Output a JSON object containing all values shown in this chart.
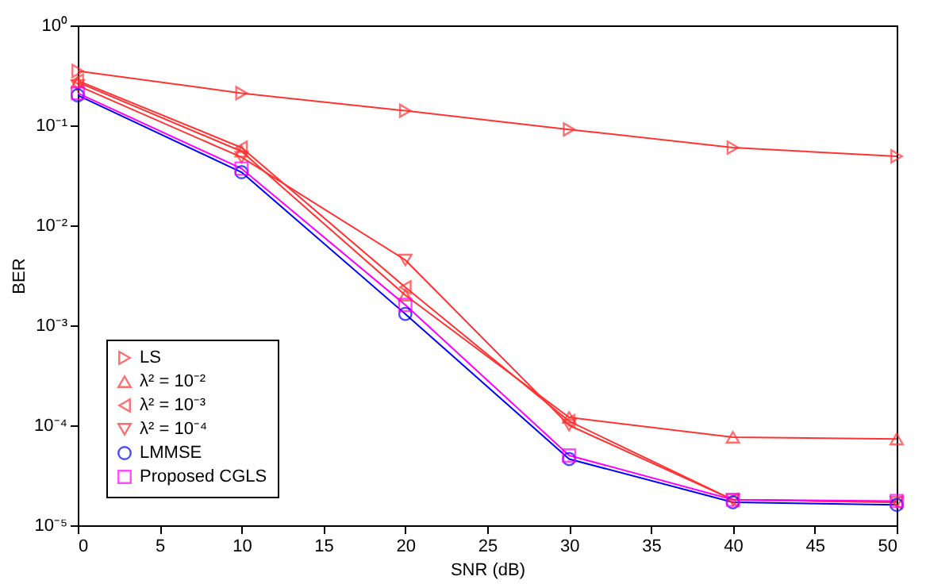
{
  "chart_data": {
    "type": "line",
    "xlabel": "SNR (dB)",
    "ylabel": "BER",
    "log": "y",
    "x": [
      0,
      10,
      20,
      30,
      40,
      50
    ],
    "xlim": [
      0,
      50
    ],
    "xticks": [
      0,
      5,
      10,
      15,
      20,
      25,
      30,
      35,
      40,
      45,
      50
    ],
    "ylim": [
      1e-05,
      1
    ],
    "yticks": [
      {
        "value": 1e-05,
        "label": "10⁻⁵"
      },
      {
        "value": 0.0001,
        "label": "10⁻⁴"
      },
      {
        "value": 0.001,
        "label": "10⁻³"
      },
      {
        "value": 0.01,
        "label": "10⁻²"
      },
      {
        "value": 0.1,
        "label": "10⁻¹"
      },
      {
        "value": 1,
        "label": "10⁰"
      }
    ],
    "grid": false,
    "legend": "bottom left",
    "line_style": "solid",
    "series": [
      {
        "name": "LS",
        "color": "#ff3333",
        "marker": "triangle-right",
        "values": [
          0.35,
          0.21,
          0.14,
          0.091,
          0.06,
          0.049
        ]
      },
      {
        "name": "λ² = 10⁻²",
        "color": "#ff3333",
        "marker": "triangle",
        "values": [
          0.27,
          0.055,
          0.002,
          0.00012,
          7.6e-05,
          7.3e-05
        ]
      },
      {
        "name": "λ² = 10⁻³",
        "color": "#ff3333",
        "marker": "triangle-left",
        "values": [
          0.28,
          0.06,
          0.0024,
          0.00011,
          1.8e-05,
          1.7e-05
        ]
      },
      {
        "name": "λ² = 10⁻⁴",
        "color": "#ff3333",
        "marker": "triangle-down",
        "values": [
          0.25,
          0.048,
          0.0045,
          0.0001,
          1.8e-05,
          1.7e-05
        ]
      },
      {
        "name": "LMMSE",
        "color": "#0000ff",
        "marker": "circle",
        "values": [
          0.2,
          0.034,
          0.0013,
          4.6e-05,
          1.7e-05,
          1.6e-05
        ]
      },
      {
        "name": "Proposed CGLS",
        "color": "#ff00ff",
        "marker": "square",
        "values": [
          0.21,
          0.037,
          0.0016,
          5e-05,
          1.8e-05,
          1.75e-05
        ]
      }
    ]
  }
}
